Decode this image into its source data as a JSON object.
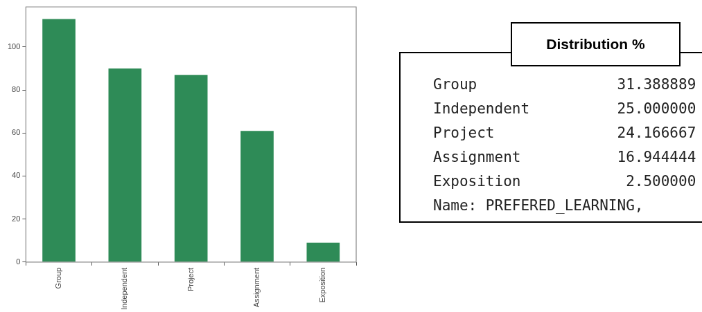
{
  "chart_data": [
    {
      "type": "bar",
      "categories": [
        "Group",
        "Independent",
        "Project",
        "Assignment",
        "Exposition"
      ],
      "values": [
        113,
        90,
        87,
        61,
        9
      ],
      "color": "#2e8b57",
      "ylim": [
        0,
        118.6
      ],
      "yticks": [
        0,
        20,
        40,
        60,
        80,
        100
      ],
      "legend": false
    },
    {
      "type": "other",
      "title": "Distribution %",
      "annotations": [
        "Group                31.388889",
        "Independent          25.000000",
        "Project              24.166667",
        "Assignment           16.944444",
        "Exposition            2.500000",
        "Name: PREFERED_LEARNING,"
      ]
    }
  ]
}
